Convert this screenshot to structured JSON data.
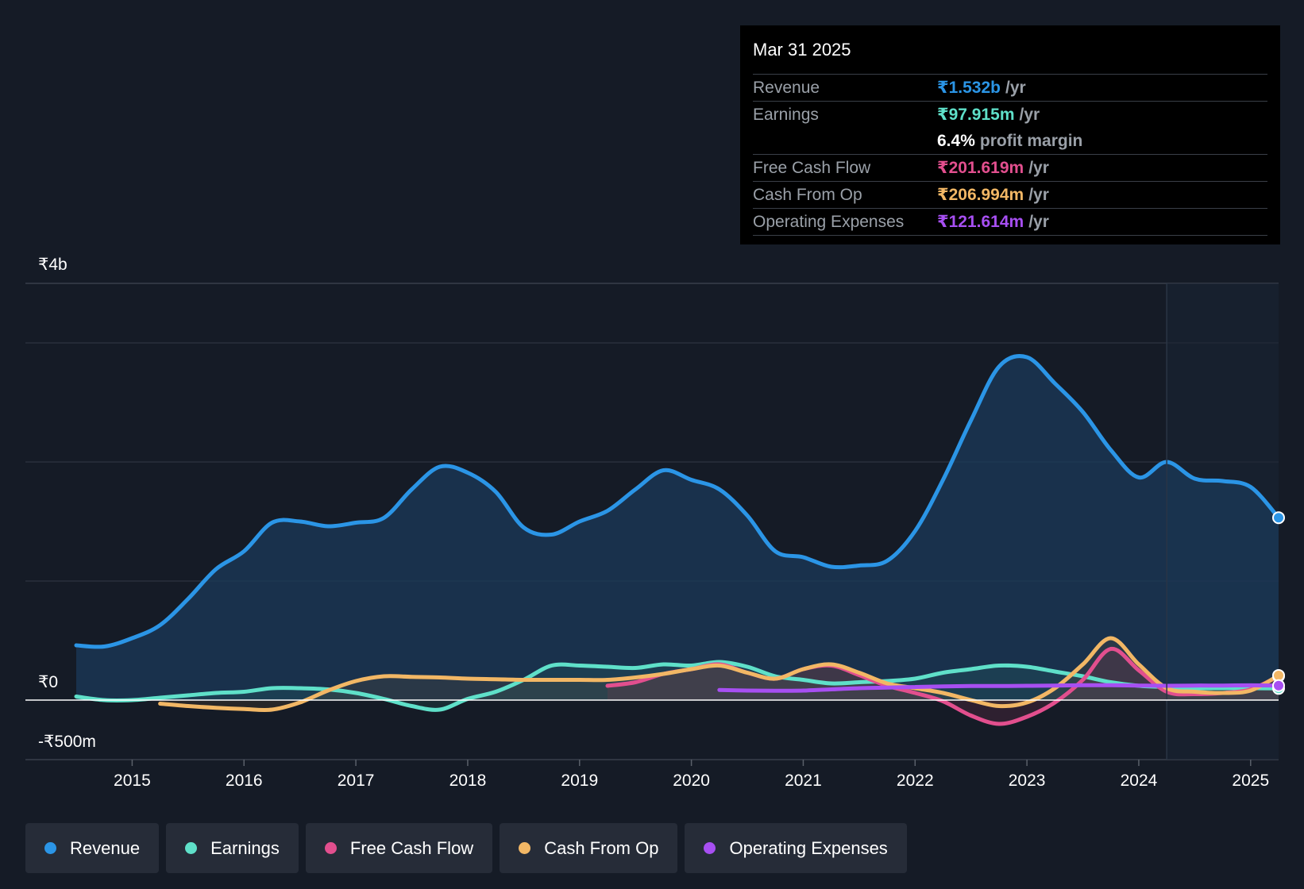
{
  "tooltip": {
    "date": "Mar 31 2025",
    "rows": [
      {
        "label": "Revenue",
        "value": "₹1.532b",
        "unit": "/yr",
        "color": "#2b95e6"
      },
      {
        "label": "Earnings",
        "value": "₹97.915m",
        "unit": "/yr",
        "color": "#5fe0c9"
      },
      {
        "label": "",
        "value": "6.4%",
        "unit": "profit margin",
        "color": "#ffffff"
      },
      {
        "label": "Free Cash Flow",
        "value": "₹201.619m",
        "unit": "/yr",
        "color": "#e24f8e"
      },
      {
        "label": "Cash From Op",
        "value": "₹206.994m",
        "unit": "/yr",
        "color": "#f2b765"
      },
      {
        "label": "Operating Expenses",
        "value": "₹121.614m",
        "unit": "/yr",
        "color": "#a74ff2"
      }
    ]
  },
  "chart_data": {
    "type": "line",
    "y_label_top": "₹4b",
    "y_label_zero": "₹0",
    "y_label_bottom": "-₹500m",
    "ylim": [
      -500,
      3500
    ],
    "xlim": [
      2014.5,
      2025.25
    ],
    "x_ticks": [
      "2015",
      "2016",
      "2017",
      "2018",
      "2019",
      "2020",
      "2021",
      "2022",
      "2023",
      "2024",
      "2025"
    ],
    "x_tick_values": [
      2015,
      2016,
      2017,
      2018,
      2019,
      2020,
      2021,
      2022,
      2023,
      2024,
      2025
    ],
    "forecast_start": 2024.25,
    "series": [
      {
        "name": "Revenue",
        "color": "#2b95e6",
        "fill": true,
        "points": [
          [
            2014.5,
            460
          ],
          [
            2014.75,
            450
          ],
          [
            2015,
            520
          ],
          [
            2015.25,
            630
          ],
          [
            2015.5,
            850
          ],
          [
            2015.75,
            1100
          ],
          [
            2016,
            1250
          ],
          [
            2016.25,
            1490
          ],
          [
            2016.5,
            1500
          ],
          [
            2016.75,
            1460
          ],
          [
            2017,
            1490
          ],
          [
            2017.25,
            1530
          ],
          [
            2017.5,
            1770
          ],
          [
            2017.75,
            1960
          ],
          [
            2018,
            1910
          ],
          [
            2018.25,
            1750
          ],
          [
            2018.5,
            1450
          ],
          [
            2018.75,
            1390
          ],
          [
            2019,
            1500
          ],
          [
            2019.25,
            1590
          ],
          [
            2019.5,
            1770
          ],
          [
            2019.75,
            1930
          ],
          [
            2020,
            1850
          ],
          [
            2020.25,
            1770
          ],
          [
            2020.5,
            1550
          ],
          [
            2020.75,
            1250
          ],
          [
            2021,
            1200
          ],
          [
            2021.25,
            1120
          ],
          [
            2021.5,
            1130
          ],
          [
            2021.75,
            1170
          ],
          [
            2022,
            1420
          ],
          [
            2022.25,
            1850
          ],
          [
            2022.5,
            2350
          ],
          [
            2022.75,
            2800
          ],
          [
            2023,
            2880
          ],
          [
            2023.25,
            2660
          ],
          [
            2023.5,
            2420
          ],
          [
            2023.75,
            2100
          ],
          [
            2024,
            1870
          ],
          [
            2024.25,
            2000
          ],
          [
            2024.5,
            1860
          ],
          [
            2024.75,
            1840
          ],
          [
            2025,
            1790
          ],
          [
            2025.25,
            1532
          ]
        ]
      },
      {
        "name": "Earnings",
        "color": "#5fe0c9",
        "fill": true,
        "points": [
          [
            2014.5,
            30
          ],
          [
            2014.75,
            0
          ],
          [
            2015,
            0
          ],
          [
            2015.25,
            20
          ],
          [
            2015.5,
            40
          ],
          [
            2015.75,
            60
          ],
          [
            2016,
            70
          ],
          [
            2016.25,
            100
          ],
          [
            2016.5,
            100
          ],
          [
            2016.75,
            90
          ],
          [
            2017,
            60
          ],
          [
            2017.25,
            10
          ],
          [
            2017.5,
            -50
          ],
          [
            2017.75,
            -80
          ],
          [
            2018,
            10
          ],
          [
            2018.25,
            70
          ],
          [
            2018.5,
            170
          ],
          [
            2018.75,
            290
          ],
          [
            2019,
            290
          ],
          [
            2019.25,
            280
          ],
          [
            2019.5,
            270
          ],
          [
            2019.75,
            300
          ],
          [
            2020,
            290
          ],
          [
            2020.25,
            320
          ],
          [
            2020.5,
            280
          ],
          [
            2020.75,
            200
          ],
          [
            2021,
            170
          ],
          [
            2021.25,
            140
          ],
          [
            2021.5,
            150
          ],
          [
            2021.75,
            160
          ],
          [
            2022,
            180
          ],
          [
            2022.25,
            230
          ],
          [
            2022.5,
            260
          ],
          [
            2022.75,
            290
          ],
          [
            2023,
            280
          ],
          [
            2023.25,
            240
          ],
          [
            2023.5,
            200
          ],
          [
            2023.75,
            150
          ],
          [
            2024,
            120
          ],
          [
            2024.25,
            110
          ],
          [
            2024.5,
            100
          ],
          [
            2024.75,
            100
          ],
          [
            2025,
            100
          ],
          [
            2025.25,
            98
          ]
        ]
      },
      {
        "name": "Free Cash Flow",
        "color": "#e24f8e",
        "fill": true,
        "points": [
          [
            2019.25,
            120
          ],
          [
            2019.5,
            150
          ],
          [
            2019.75,
            220
          ],
          [
            2020,
            260
          ],
          [
            2020.25,
            300
          ],
          [
            2020.5,
            230
          ],
          [
            2020.75,
            180
          ],
          [
            2021,
            260
          ],
          [
            2021.25,
            290
          ],
          [
            2021.5,
            210
          ],
          [
            2021.75,
            120
          ],
          [
            2022,
            60
          ],
          [
            2022.25,
            -10
          ],
          [
            2022.5,
            -130
          ],
          [
            2022.75,
            -200
          ],
          [
            2023,
            -140
          ],
          [
            2023.25,
            -20
          ],
          [
            2023.5,
            170
          ],
          [
            2023.75,
            430
          ],
          [
            2024,
            250
          ],
          [
            2024.25,
            70
          ],
          [
            2024.5,
            50
          ],
          [
            2024.75,
            60
          ],
          [
            2025,
            90
          ],
          [
            2025.25,
            201
          ]
        ]
      },
      {
        "name": "Cash From Op",
        "color": "#f2b765",
        "fill": true,
        "points": [
          [
            2015.25,
            -30
          ],
          [
            2015.5,
            -50
          ],
          [
            2015.75,
            -65
          ],
          [
            2016,
            -75
          ],
          [
            2016.25,
            -80
          ],
          [
            2016.5,
            -20
          ],
          [
            2016.75,
            80
          ],
          [
            2017,
            160
          ],
          [
            2017.25,
            200
          ],
          [
            2017.5,
            195
          ],
          [
            2017.75,
            190
          ],
          [
            2018,
            180
          ],
          [
            2018.25,
            175
          ],
          [
            2018.5,
            170
          ],
          [
            2018.75,
            170
          ],
          [
            2019,
            170
          ],
          [
            2019.25,
            170
          ],
          [
            2019.5,
            190
          ],
          [
            2019.75,
            220
          ],
          [
            2020,
            260
          ],
          [
            2020.25,
            290
          ],
          [
            2020.5,
            230
          ],
          [
            2020.75,
            180
          ],
          [
            2021,
            260
          ],
          [
            2021.25,
            300
          ],
          [
            2021.5,
            230
          ],
          [
            2021.75,
            140
          ],
          [
            2022,
            100
          ],
          [
            2022.25,
            60
          ],
          [
            2022.5,
            0
          ],
          [
            2022.75,
            -50
          ],
          [
            2023,
            -20
          ],
          [
            2023.25,
            100
          ],
          [
            2023.5,
            300
          ],
          [
            2023.75,
            520
          ],
          [
            2024,
            300
          ],
          [
            2024.25,
            100
          ],
          [
            2024.5,
            70
          ],
          [
            2024.75,
            60
          ],
          [
            2025,
            80
          ],
          [
            2025.25,
            207
          ]
        ]
      },
      {
        "name": "Operating Expenses",
        "color": "#a74ff2",
        "fill": false,
        "points": [
          [
            2020.25,
            85
          ],
          [
            2020.5,
            80
          ],
          [
            2020.75,
            78
          ],
          [
            2021,
            80
          ],
          [
            2021.25,
            90
          ],
          [
            2021.5,
            100
          ],
          [
            2021.75,
            105
          ],
          [
            2022,
            110
          ],
          [
            2022.25,
            115
          ],
          [
            2022.5,
            118
          ],
          [
            2022.75,
            118
          ],
          [
            2023,
            120
          ],
          [
            2023.25,
            122
          ],
          [
            2023.5,
            125
          ],
          [
            2023.75,
            125
          ],
          [
            2024,
            122
          ],
          [
            2024.25,
            120
          ],
          [
            2024.5,
            122
          ],
          [
            2024.75,
            122
          ],
          [
            2025,
            124
          ],
          [
            2025.25,
            122
          ]
        ]
      }
    ]
  },
  "legend": [
    {
      "label": "Revenue",
      "color": "#2b95e6"
    },
    {
      "label": "Earnings",
      "color": "#5fe0c9"
    },
    {
      "label": "Free Cash Flow",
      "color": "#e24f8e"
    },
    {
      "label": "Cash From Op",
      "color": "#f2b765"
    },
    {
      "label": "Operating Expenses",
      "color": "#a74ff2"
    }
  ]
}
